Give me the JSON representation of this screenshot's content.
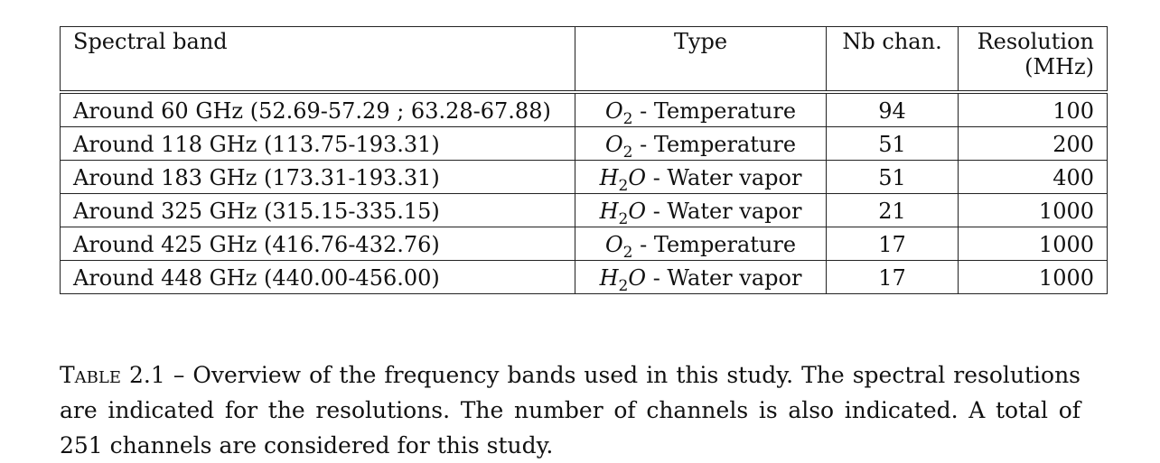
{
  "table": {
    "headers": {
      "band": "Spectral band",
      "type": "Type",
      "channels": "Nb chan.",
      "resolution_line1": "Resolution",
      "resolution_line2": "(MHz)"
    },
    "rows": [
      {
        "band": "Around 60 GHz (52.69-57.29 ; 63.28-67.88)",
        "molecule": "O",
        "molecule_sub": "2",
        "type": " - Temperature",
        "channels": "94",
        "resolution": "100"
      },
      {
        "band": "Around 118 GHz (113.75-193.31)",
        "molecule": "O",
        "molecule_sub": "2",
        "type": " - Temperature",
        "channels": "51",
        "resolution": "200"
      },
      {
        "band": "Around 183 GHz (173.31-193.31)",
        "molecule": "H",
        "molecule_sub": "2",
        "molecule_tail": "O",
        "type": " - Water vapor",
        "channels": "51",
        "resolution": "400"
      },
      {
        "band": "Around 325 GHz (315.15-335.15)",
        "molecule": "H",
        "molecule_sub": "2",
        "molecule_tail": "O",
        "type": " - Water vapor",
        "channels": "21",
        "resolution": "1000"
      },
      {
        "band": "Around 425 GHz (416.76-432.76)",
        "molecule": "O",
        "molecule_sub": "2",
        "type": " - Temperature",
        "channels": "17",
        "resolution": "1000"
      },
      {
        "band": "Around 448 GHz (440.00-456.00)",
        "molecule": "H",
        "molecule_sub": "2",
        "molecule_tail": "O",
        "type": " - Water vapor",
        "channels": "17",
        "resolution": "1000"
      }
    ]
  },
  "caption": {
    "label": "Table 2.1",
    "separator": " – ",
    "text": "Overview of the frequency bands used in this study. The spectral resolutions are indicated for the resolutions. The number of channels is also indicated. A total of 251 channels are considered for this study."
  }
}
